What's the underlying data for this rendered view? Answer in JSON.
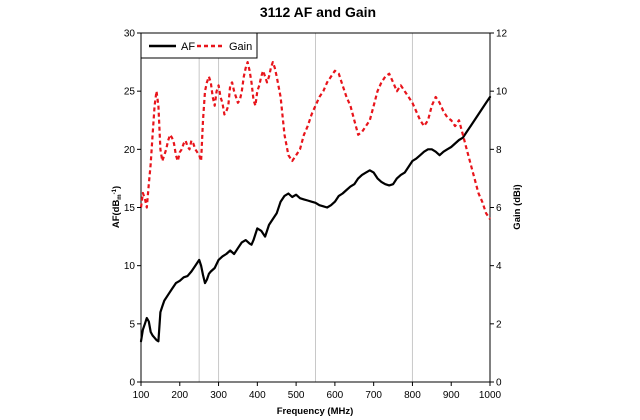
{
  "chart_data": {
    "type": "line",
    "title": "3112 AF and Gain",
    "xlabel": "Frequency (MHz)",
    "ylabel_left": "AF(dB",
    "ylabel_left_sub": "m",
    "ylabel_left_sup": "-1",
    "ylabel_left_end": ")",
    "ylabel_right": "Gain (dBi)",
    "xlim": [
      100,
      1000
    ],
    "ylim_left": [
      0,
      30
    ],
    "ylim_right": [
      0,
      12
    ],
    "x_ticks": [
      100,
      200,
      300,
      400,
      500,
      600,
      700,
      800,
      900,
      1000
    ],
    "y_left_ticks": [
      0,
      5,
      10,
      15,
      20,
      25,
      30
    ],
    "y_right_ticks": [
      0,
      2,
      4,
      6,
      8,
      10,
      12
    ],
    "gridlines_x": [
      250,
      300,
      550,
      800
    ],
    "legend_position": "top-left",
    "series": [
      {
        "name": "AF",
        "axis": "left",
        "color": "#000000",
        "style": "solid",
        "x": [
          100,
          105,
          110,
          115,
          120,
          125,
          130,
          135,
          140,
          145,
          150,
          155,
          160,
          170,
          180,
          190,
          200,
          210,
          220,
          230,
          240,
          250,
          255,
          260,
          265,
          270,
          275,
          280,
          290,
          300,
          310,
          320,
          330,
          340,
          350,
          360,
          370,
          380,
          385,
          390,
          400,
          410,
          420,
          430,
          440,
          450,
          460,
          470,
          480,
          490,
          500,
          510,
          520,
          530,
          540,
          550,
          560,
          570,
          580,
          590,
          600,
          610,
          620,
          630,
          640,
          650,
          660,
          670,
          680,
          690,
          700,
          710,
          720,
          730,
          740,
          750,
          760,
          770,
          780,
          790,
          800,
          810,
          820,
          830,
          840,
          850,
          860,
          870,
          880,
          890,
          900,
          910,
          920,
          930,
          940,
          950,
          960,
          970,
          980,
          990,
          1000
        ],
        "y": [
          3.5,
          4.5,
          5.0,
          5.5,
          5.2,
          4.3,
          4.0,
          3.8,
          3.6,
          3.5,
          6.0,
          6.5,
          7.0,
          7.5,
          8.0,
          8.5,
          8.7,
          9.0,
          9.1,
          9.5,
          10.0,
          10.5,
          10.0,
          9.2,
          8.5,
          8.8,
          9.3,
          9.5,
          9.8,
          10.5,
          10.8,
          11.0,
          11.3,
          11.0,
          11.5,
          12.0,
          12.2,
          11.9,
          11.8,
          12.2,
          13.2,
          13.0,
          12.5,
          13.5,
          14.0,
          14.5,
          15.5,
          16.0,
          16.2,
          15.9,
          16.1,
          15.8,
          15.7,
          15.6,
          15.5,
          15.4,
          15.2,
          15.1,
          15.0,
          15.2,
          15.5,
          16.0,
          16.2,
          16.5,
          16.8,
          17.0,
          17.5,
          17.8,
          18.0,
          18.2,
          18.0,
          17.5,
          17.2,
          17.0,
          16.9,
          17.0,
          17.5,
          17.8,
          18.0,
          18.5,
          19.0,
          19.2,
          19.5,
          19.8,
          20.0,
          20.0,
          19.8,
          19.5,
          19.8,
          20.0,
          20.2,
          20.5,
          20.8,
          21.0,
          21.5,
          22.0,
          22.5,
          23.0,
          23.5,
          24.0,
          24.5
        ]
      },
      {
        "name": "Gain",
        "axis": "right",
        "color": "#e8141b",
        "style": "dashed",
        "x": [
          100,
          105,
          110,
          115,
          120,
          125,
          130,
          135,
          140,
          145,
          150,
          155,
          160,
          165,
          170,
          175,
          180,
          185,
          190,
          195,
          200,
          205,
          210,
          215,
          220,
          225,
          230,
          235,
          240,
          245,
          250,
          255,
          260,
          265,
          270,
          275,
          280,
          285,
          290,
          295,
          300,
          305,
          310,
          315,
          320,
          325,
          330,
          335,
          340,
          345,
          350,
          355,
          360,
          365,
          370,
          375,
          380,
          385,
          390,
          395,
          400,
          405,
          410,
          415,
          420,
          425,
          430,
          435,
          440,
          445,
          450,
          460,
          470,
          480,
          490,
          500,
          510,
          520,
          530,
          540,
          550,
          560,
          570,
          580,
          590,
          600,
          610,
          620,
          630,
          640,
          650,
          660,
          670,
          680,
          690,
          700,
          710,
          720,
          730,
          740,
          750,
          760,
          770,
          780,
          790,
          800,
          810,
          820,
          830,
          840,
          850,
          860,
          870,
          880,
          890,
          900,
          910,
          920,
          930,
          940,
          950,
          960,
          970,
          980,
          990,
          1000
        ],
        "y": [
          6.0,
          6.5,
          6.3,
          6.0,
          6.8,
          7.5,
          8.5,
          9.5,
          10.0,
          9.5,
          8.0,
          7.6,
          7.8,
          8.0,
          8.3,
          8.5,
          8.4,
          8.2,
          7.8,
          7.6,
          7.9,
          8.0,
          8.2,
          8.3,
          8.1,
          8.0,
          8.3,
          8.2,
          8.0,
          7.9,
          7.8,
          7.6,
          9.0,
          10.0,
          10.3,
          10.5,
          10.3,
          9.8,
          9.5,
          10.0,
          10.2,
          9.8,
          9.6,
          9.2,
          9.3,
          9.5,
          10.2,
          10.3,
          10.0,
          9.8,
          9.6,
          9.7,
          10.0,
          10.5,
          10.8,
          11.0,
          10.7,
          10.3,
          9.7,
          9.5,
          10.0,
          10.2,
          10.5,
          10.7,
          10.5,
          10.3,
          10.5,
          10.8,
          11.0,
          10.8,
          10.5,
          9.8,
          8.5,
          7.8,
          7.6,
          7.8,
          8.0,
          8.5,
          8.8,
          9.2,
          9.5,
          9.8,
          10.0,
          10.3,
          10.5,
          10.7,
          10.6,
          10.2,
          9.8,
          9.5,
          9.0,
          8.5,
          8.6,
          8.8,
          9.0,
          9.5,
          10.0,
          10.3,
          10.5,
          10.6,
          10.3,
          10.0,
          10.2,
          10.0,
          9.8,
          9.6,
          9.3,
          9.0,
          8.8,
          9.0,
          9.5,
          9.8,
          9.6,
          9.3,
          9.1,
          9.0,
          8.8,
          9.0,
          8.5,
          8.0,
          7.5,
          7.0,
          6.5,
          6.2,
          5.8,
          5.6
        ]
      }
    ]
  }
}
